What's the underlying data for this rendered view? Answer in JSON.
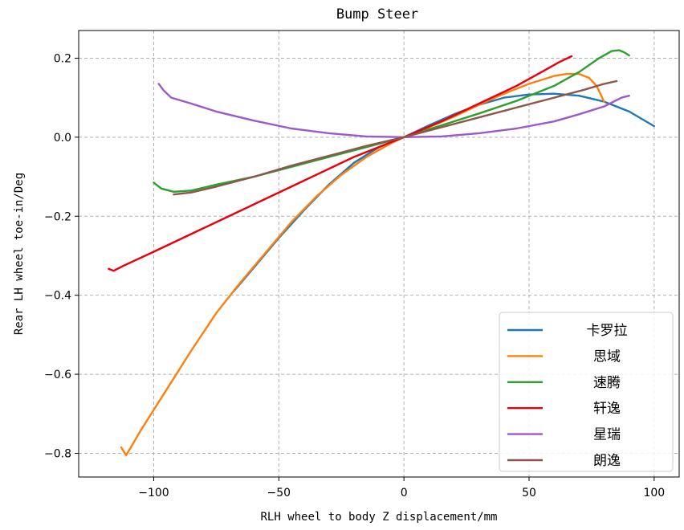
{
  "chart_data": {
    "type": "line",
    "title": "Bump Steer",
    "xlabel": "RLH wheel to body Z displacement/mm",
    "ylabel": "Rear LH wheel toe-in/Deg",
    "xlim": [
      -130,
      110
    ],
    "ylim": [
      -0.86,
      0.27
    ],
    "xticks": [
      -100,
      -50,
      0,
      50,
      100
    ],
    "yticks": [
      -0.8,
      -0.6,
      -0.4,
      -0.2,
      0.0,
      0.2
    ],
    "xtick_labels": [
      "−100",
      "−50",
      "0",
      "50",
      "100"
    ],
    "ytick_labels": [
      "−0.8",
      "−0.6",
      "−0.4",
      "−0.2",
      "0.0",
      "0.2"
    ],
    "grid": true,
    "legend_position": "lower-right",
    "series": [
      {
        "name": "卡罗拉",
        "color": "#1f77b4",
        "points": [
          [
            -68,
            -0.39
          ],
          [
            -60,
            -0.33
          ],
          [
            -50,
            -0.255
          ],
          [
            -40,
            -0.185
          ],
          [
            -30,
            -0.12
          ],
          [
            -20,
            -0.065
          ],
          [
            -10,
            -0.025
          ],
          [
            0,
            0.0
          ],
          [
            10,
            0.03
          ],
          [
            20,
            0.058
          ],
          [
            30,
            0.082
          ],
          [
            40,
            0.1
          ],
          [
            50,
            0.108
          ],
          [
            60,
            0.11
          ],
          [
            70,
            0.105
          ],
          [
            80,
            0.09
          ],
          [
            90,
            0.065
          ],
          [
            100,
            0.028
          ]
        ]
      },
      {
        "name": "思域",
        "color": "#ff7f0e",
        "points": [
          [
            -113,
            -0.785
          ],
          [
            -111,
            -0.805
          ],
          [
            -105,
            -0.74
          ],
          [
            -95,
            -0.64
          ],
          [
            -85,
            -0.54
          ],
          [
            -75,
            -0.445
          ],
          [
            -65,
            -0.365
          ],
          [
            -55,
            -0.29
          ],
          [
            -45,
            -0.215
          ],
          [
            -35,
            -0.15
          ],
          [
            -25,
            -0.095
          ],
          [
            -15,
            -0.05
          ],
          [
            -5,
            -0.015
          ],
          [
            0,
            0.0
          ],
          [
            10,
            0.025
          ],
          [
            20,
            0.052
          ],
          [
            30,
            0.082
          ],
          [
            40,
            0.11
          ],
          [
            50,
            0.135
          ],
          [
            60,
            0.155
          ],
          [
            65,
            0.16
          ],
          [
            70,
            0.16
          ],
          [
            74,
            0.15
          ],
          [
            77,
            0.13
          ],
          [
            80,
            0.09
          ]
        ]
      },
      {
        "name": "速腾",
        "color": "#2ca02c",
        "points": [
          [
            -100,
            -0.115
          ],
          [
            -97,
            -0.13
          ],
          [
            -92,
            -0.138
          ],
          [
            -85,
            -0.135
          ],
          [
            -75,
            -0.12
          ],
          [
            -60,
            -0.1
          ],
          [
            -45,
            -0.075
          ],
          [
            -30,
            -0.05
          ],
          [
            -15,
            -0.025
          ],
          [
            0,
            0.0
          ],
          [
            15,
            0.03
          ],
          [
            30,
            0.06
          ],
          [
            45,
            0.092
          ],
          [
            60,
            0.13
          ],
          [
            70,
            0.165
          ],
          [
            78,
            0.2
          ],
          [
            83,
            0.218
          ],
          [
            86,
            0.22
          ],
          [
            88,
            0.215
          ],
          [
            90,
            0.207
          ]
        ]
      },
      {
        "name": "轩逸",
        "color": "#e8000b",
        "points": [
          [
            -118,
            -0.333
          ],
          [
            -116,
            -0.338
          ],
          [
            -112,
            -0.325
          ],
          [
            -100,
            -0.29
          ],
          [
            -80,
            -0.23
          ],
          [
            -60,
            -0.17
          ],
          [
            -40,
            -0.11
          ],
          [
            -20,
            -0.05
          ],
          [
            0,
            0.0
          ],
          [
            15,
            0.04
          ],
          [
            30,
            0.085
          ],
          [
            45,
            0.13
          ],
          [
            55,
            0.165
          ],
          [
            62,
            0.19
          ],
          [
            67,
            0.205
          ]
        ]
      },
      {
        "name": "星瑞",
        "color": "#9b59c9",
        "points": [
          [
            -98,
            0.135
          ],
          [
            -96,
            0.118
          ],
          [
            -93,
            0.1
          ],
          [
            -85,
            0.085
          ],
          [
            -75,
            0.065
          ],
          [
            -60,
            0.042
          ],
          [
            -45,
            0.022
          ],
          [
            -30,
            0.01
          ],
          [
            -15,
            0.002
          ],
          [
            0,
            0.0
          ],
          [
            15,
            0.002
          ],
          [
            30,
            0.01
          ],
          [
            45,
            0.022
          ],
          [
            60,
            0.04
          ],
          [
            70,
            0.058
          ],
          [
            80,
            0.078
          ],
          [
            87,
            0.1
          ],
          [
            90,
            0.105
          ]
        ]
      },
      {
        "name": "朗逸",
        "color": "#8c564b",
        "points": [
          [
            -92,
            -0.145
          ],
          [
            -85,
            -0.14
          ],
          [
            -75,
            -0.125
          ],
          [
            -60,
            -0.1
          ],
          [
            -45,
            -0.072
          ],
          [
            -30,
            -0.047
          ],
          [
            -15,
            -0.022
          ],
          [
            0,
            0.0
          ],
          [
            15,
            0.025
          ],
          [
            30,
            0.05
          ],
          [
            45,
            0.075
          ],
          [
            60,
            0.1
          ],
          [
            72,
            0.12
          ],
          [
            80,
            0.135
          ],
          [
            85,
            0.142
          ]
        ]
      }
    ]
  }
}
